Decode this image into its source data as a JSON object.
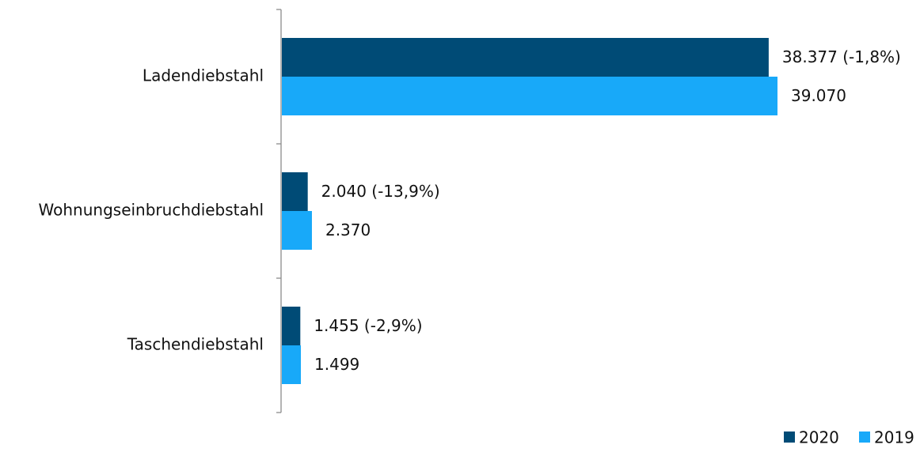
{
  "chart_data": {
    "type": "bar",
    "orientation": "horizontal",
    "categories": [
      "Ladendiebstahl",
      "Wohnungseinbruchdiebstahl",
      "Taschendiebstahl"
    ],
    "series": [
      {
        "name": "2020",
        "color": "#004b76",
        "values": [
          38377,
          2040,
          1455
        ],
        "labels": [
          "38.377 (-1,8%)",
          "2.040 (-13,9%)",
          "1.455 (-2,9%)"
        ]
      },
      {
        "name": "2019",
        "color": "#18a9f9",
        "values": [
          39070,
          2370,
          1499
        ],
        "labels": [
          "39.070",
          "2.370",
          "1.499"
        ]
      }
    ],
    "xlim": [
      0,
      39070
    ],
    "grid": false,
    "legend_position": "bottom-right"
  }
}
